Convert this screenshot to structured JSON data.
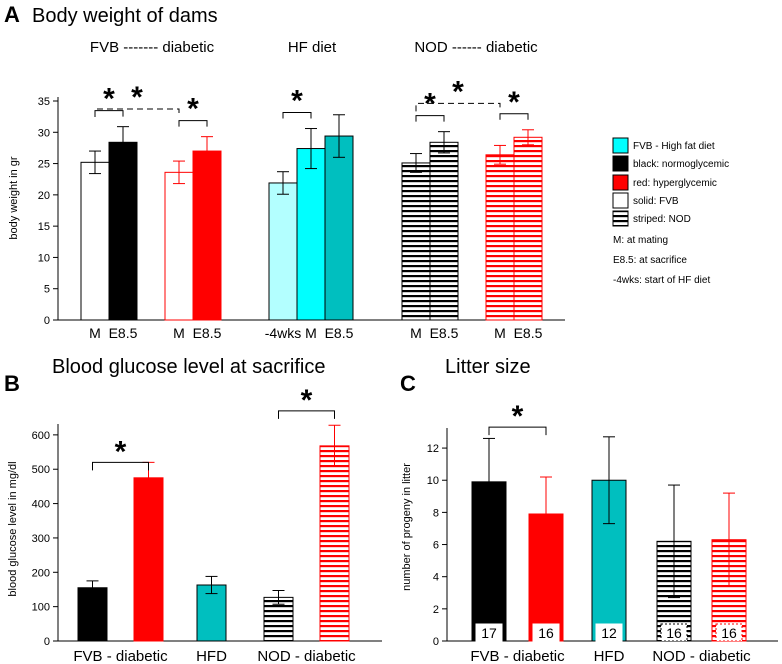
{
  "colors": {
    "black": "#000000",
    "red": "#ff0000",
    "teal": "#00bfbf",
    "cyan": "#00ffff",
    "light_cyan": "#b3ffff",
    "white": "#ffffff"
  },
  "chart_data": [
    {
      "id": "A",
      "type": "bar",
      "panel_label": "A",
      "title": "Body weight of dams",
      "xlabel": "",
      "ylabel": "body weight in gr",
      "ylim": [
        0,
        35
      ],
      "yticks": [
        0,
        5,
        10,
        15,
        20,
        25,
        30,
        35
      ],
      "groups": [
        {
          "label": "FVB ------- diabetic"
        },
        {
          "label": "HF diet"
        },
        {
          "label": "NOD ------ diabetic"
        }
      ],
      "bars": [
        {
          "label": "M",
          "value": 25.2,
          "err": 1.8,
          "fill": "white",
          "stroke": "black",
          "striped": false
        },
        {
          "label": "E8.5",
          "value": 28.4,
          "err": 2.5,
          "fill": "black",
          "stroke": "black",
          "striped": false
        },
        {
          "label": "M",
          "value": 23.6,
          "err": 1.8,
          "fill": "white",
          "stroke": "red",
          "striped": false
        },
        {
          "label": "E8.5",
          "value": 27.0,
          "err": 2.3,
          "fill": "red",
          "stroke": "red",
          "striped": false
        },
        {
          "label": "-4wks",
          "value": 21.9,
          "err": 1.8,
          "fill": "light_cyan",
          "stroke": "black",
          "striped": false
        },
        {
          "label": "M",
          "value": 27.4,
          "err": 3.2,
          "fill": "cyan",
          "stroke": "black",
          "striped": false
        },
        {
          "label": "E8.5",
          "value": 29.4,
          "err": 3.4,
          "fill": "teal",
          "stroke": "black",
          "striped": false
        },
        {
          "label": "M",
          "value": 25.1,
          "err": 1.5,
          "fill": "white",
          "stroke": "black",
          "striped": true
        },
        {
          "label": "E8.5",
          "value": 28.4,
          "err": 1.7,
          "fill": "white",
          "stroke": "black",
          "striped": true
        },
        {
          "label": "M",
          "value": 26.4,
          "err": 1.5,
          "fill": "white",
          "stroke": "red",
          "striped": true
        },
        {
          "label": "E8.5",
          "value": 29.2,
          "err": 1.2,
          "fill": "white",
          "stroke": "red",
          "striped": true
        }
      ],
      "significance": [
        {
          "label": "*",
          "from": 0,
          "to": 1,
          "dashed": false
        },
        {
          "label": "*",
          "from": 2,
          "to": 3,
          "dashed": false
        },
        {
          "label": "*",
          "from": 0,
          "to": 2,
          "dashed": true
        },
        {
          "label": "*",
          "from": 4,
          "to": 5,
          "dashed": false
        },
        {
          "label": "*",
          "from": 7,
          "to": 8,
          "dashed": false
        },
        {
          "label": "*",
          "from": 9,
          "to": 10,
          "dashed": false
        },
        {
          "label": "*",
          "from": 7,
          "to": 9,
          "dashed": true
        }
      ],
      "legend": [
        {
          "label": "FVB - High fat diet",
          "fill": "cyan",
          "striped": false,
          "swatch": true
        },
        {
          "label": "black: normoglycemic",
          "fill": "black",
          "striped": false,
          "swatch": true
        },
        {
          "label": "red: hyperglycemic",
          "fill": "red",
          "striped": false,
          "swatch": true
        },
        {
          "label": "solid: FVB",
          "fill": "white",
          "striped": false,
          "swatch": true
        },
        {
          "label": "striped: NOD",
          "fill": "white",
          "striped": true,
          "swatch": true
        },
        {
          "label": "M: at mating",
          "swatch": false
        },
        {
          "label": "E8.5: at sacrifice",
          "swatch": false
        },
        {
          "label": "-4wks: start of HF diet",
          "swatch": false
        }
      ]
    },
    {
      "id": "B",
      "type": "bar",
      "panel_label": "B",
      "title": "Blood glucose level at sacrifice",
      "xlabel": "",
      "ylabel": "blood glucose level in mg/dl",
      "ylim": [
        0,
        620
      ],
      "yticks": [
        0,
        100,
        200,
        300,
        400,
        500,
        600
      ],
      "categories": [
        "FVB - diabetic",
        "HFD",
        "NOD - diabetic"
      ],
      "bars": [
        {
          "value": 155,
          "err": 20,
          "fill": "black",
          "stroke": "black",
          "striped": false,
          "err_color": "black"
        },
        {
          "value": 475,
          "err": 45,
          "fill": "red",
          "stroke": "red",
          "striped": false,
          "err_color": "red"
        },
        {
          "value": 163,
          "err": 25,
          "fill": "teal",
          "stroke": "black",
          "striped": false,
          "err_color": "black"
        },
        {
          "value": 127,
          "err": 20,
          "fill": "white",
          "stroke": "black",
          "striped": true,
          "err_color": "black"
        },
        {
          "value": 568,
          "err": 60,
          "fill": "white",
          "stroke": "red",
          "striped": true,
          "err_color": "red"
        }
      ],
      "significance": [
        {
          "label": "*",
          "from": 0,
          "to": 1,
          "y": 520
        },
        {
          "label": "*",
          "from": 3,
          "to": 4,
          "y": 670
        }
      ]
    },
    {
      "id": "C",
      "type": "bar",
      "panel_label": "C",
      "title": "Litter size",
      "xlabel": "",
      "ylabel": "number of progeny in litter",
      "ylim": [
        0,
        13
      ],
      "yticks": [
        0,
        2,
        4,
        6,
        8,
        10,
        12
      ],
      "categories": [
        "FVB - diabetic",
        "HFD",
        "NOD - diabetic"
      ],
      "bars": [
        {
          "value": 9.9,
          "err": 2.7,
          "fill": "black",
          "stroke": "black",
          "striped": false,
          "err_color": "black",
          "n": "17"
        },
        {
          "value": 7.9,
          "err": 2.3,
          "fill": "red",
          "stroke": "red",
          "striped": false,
          "err_color": "red",
          "n": "16"
        },
        {
          "value": 10.0,
          "err": 2.7,
          "fill": "teal",
          "stroke": "black",
          "striped": false,
          "err_color": "black",
          "n": "12"
        },
        {
          "value": 6.2,
          "err": 3.5,
          "fill": "white",
          "stroke": "black",
          "striped": true,
          "err_color": "black",
          "n": "16"
        },
        {
          "value": 6.3,
          "err": 2.9,
          "fill": "white",
          "stroke": "red",
          "striped": true,
          "err_color": "red",
          "n": "16"
        }
      ],
      "significance": [
        {
          "label": "*",
          "from": 0,
          "to": 1,
          "y": 13.3
        }
      ]
    }
  ]
}
